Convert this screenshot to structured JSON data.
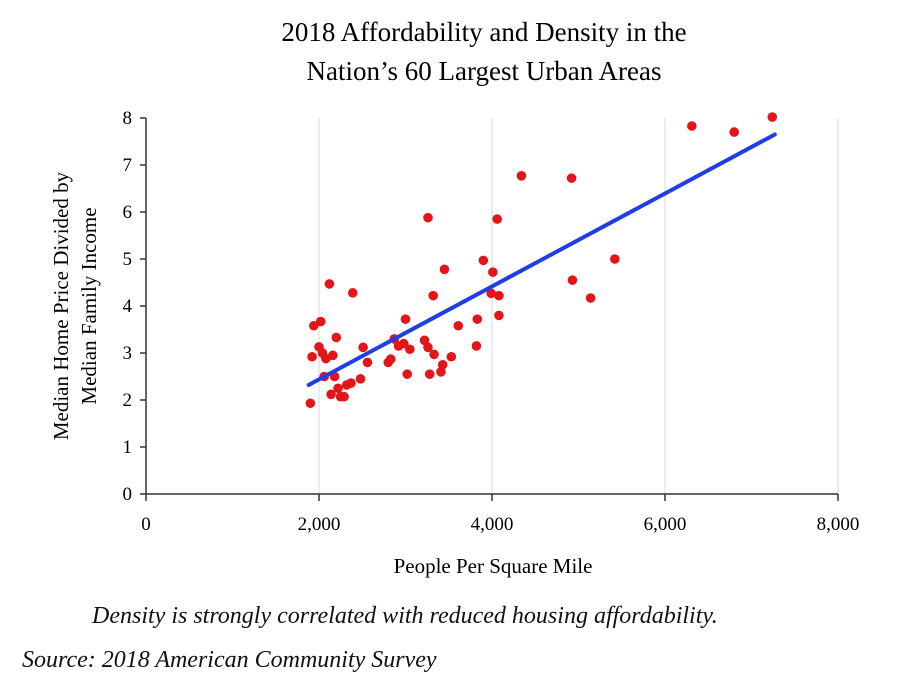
{
  "chart_data": {
    "type": "scatter",
    "title": [
      "2018 Affordability and Density in the",
      "Nation’s 60 Largest Urban Areas"
    ],
    "xlabel": "People Per Square Mile",
    "ylabel": [
      "Median Home Price Divided by",
      "Median Family Income"
    ],
    "xlim": [
      0,
      8000
    ],
    "ylim": [
      0,
      8
    ],
    "x_ticks": [
      0,
      2000,
      4000,
      6000,
      8000
    ],
    "x_tick_labels": [
      "0",
      "2,000",
      "4,000",
      "6,000",
      "8,000"
    ],
    "y_ticks": [
      0,
      1,
      2,
      3,
      4,
      5,
      6,
      7,
      8
    ],
    "y_tick_labels": [
      "0",
      "1",
      "2",
      "3",
      "4",
      "5",
      "6",
      "7",
      "8"
    ],
    "grid": "vertical",
    "legend": "none",
    "points": [
      [
        1900,
        1.93
      ],
      [
        1920,
        2.92
      ],
      [
        1940,
        3.58
      ],
      [
        2000,
        3.13
      ],
      [
        2020,
        3.67
      ],
      [
        2040,
        3.0
      ],
      [
        2060,
        2.5
      ],
      [
        2080,
        2.88
      ],
      [
        2120,
        4.47
      ],
      [
        2140,
        2.12
      ],
      [
        2160,
        2.95
      ],
      [
        2180,
        2.5
      ],
      [
        2200,
        3.33
      ],
      [
        2220,
        2.25
      ],
      [
        2250,
        2.07
      ],
      [
        2290,
        2.07
      ],
      [
        2320,
        2.32
      ],
      [
        2370,
        2.36
      ],
      [
        2390,
        4.28
      ],
      [
        2480,
        2.45
      ],
      [
        2510,
        3.12
      ],
      [
        2560,
        2.8
      ],
      [
        2800,
        2.8
      ],
      [
        2830,
        2.87
      ],
      [
        2870,
        3.3
      ],
      [
        2920,
        3.15
      ],
      [
        2980,
        3.2
      ],
      [
        3000,
        3.72
      ],
      [
        3020,
        2.55
      ],
      [
        3050,
        3.08
      ],
      [
        3220,
        3.27
      ],
      [
        3260,
        3.12
      ],
      [
        3280,
        2.55
      ],
      [
        3260,
        5.88
      ],
      [
        3320,
        4.22
      ],
      [
        3330,
        2.97
      ],
      [
        3410,
        2.6
      ],
      [
        3430,
        2.75
      ],
      [
        3450,
        4.78
      ],
      [
        3530,
        2.92
      ],
      [
        3610,
        3.58
      ],
      [
        3820,
        3.15
      ],
      [
        3830,
        3.72
      ],
      [
        3900,
        4.97
      ],
      [
        3990,
        4.27
      ],
      [
        4010,
        4.72
      ],
      [
        4060,
        5.85
      ],
      [
        4080,
        4.22
      ],
      [
        4080,
        3.8
      ],
      [
        4340,
        6.77
      ],
      [
        4920,
        6.72
      ],
      [
        4930,
        4.55
      ],
      [
        5140,
        4.17
      ],
      [
        5420,
        5.0
      ],
      [
        6310,
        7.83
      ],
      [
        6800,
        7.7
      ],
      [
        7240,
        8.02
      ]
    ],
    "trendline": {
      "x": [
        1880,
        7270
      ],
      "y": [
        2.32,
        7.65
      ]
    },
    "colors": {
      "points": "#e4141b",
      "trendline": "#1e3fe6",
      "axis": "#333333",
      "grid": "#d9d9d9"
    }
  },
  "caption": "Density is strongly correlated with reduced housing affordability.",
  "source": "Source: 2018 American Community Survey"
}
